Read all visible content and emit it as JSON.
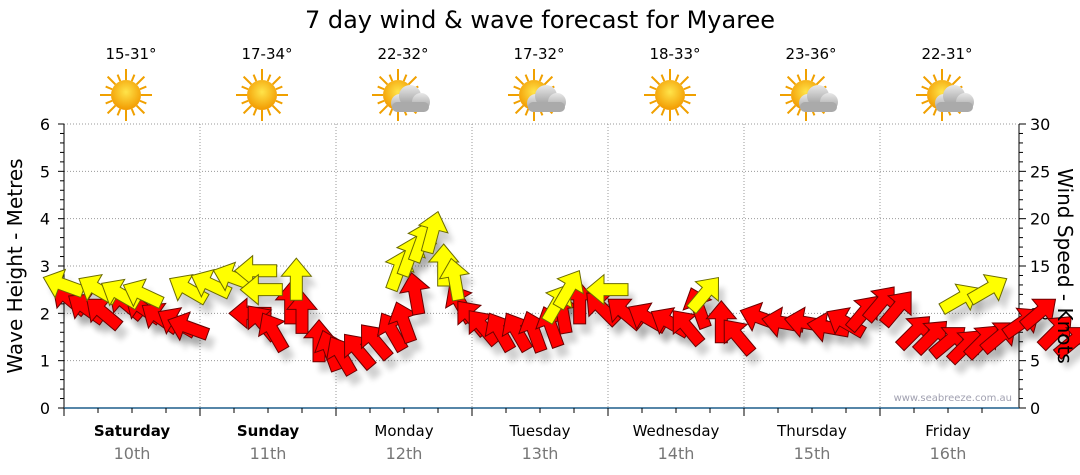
{
  "chart_data": {
    "type": "scatter",
    "title": "7 day wind & wave forecast for Myaree",
    "ylabel_left": "Wave Height - Metres",
    "ylabel_right": "Wind Speed - Knots",
    "ylim_left": [
      0,
      6
    ],
    "ylim_right": [
      0,
      30
    ],
    "yticks_left": [
      "0",
      "1",
      "2",
      "3",
      "4",
      "5",
      "6"
    ],
    "yticks_right": [
      "0",
      "5",
      "10",
      "15",
      "20",
      "25",
      "30"
    ],
    "grid": true,
    "watermark": "www.seabreeze.com.au",
    "days": [
      {
        "name": "Saturday",
        "date": "10th",
        "temp": "15-31°",
        "weather": "sunny",
        "bold": true
      },
      {
        "name": "Sunday",
        "date": "11th",
        "temp": "17-34°",
        "weather": "sunny",
        "bold": true
      },
      {
        "name": "Monday",
        "date": "12th",
        "temp": "22-32°",
        "weather": "partly-cloudy",
        "bold": false
      },
      {
        "name": "Tuesday",
        "date": "13th",
        "temp": "17-32°",
        "weather": "partly-cloudy",
        "bold": false
      },
      {
        "name": "Wednesday",
        "date": "14th",
        "temp": "18-33°",
        "weather": "sunny",
        "bold": false
      },
      {
        "name": "Thursday",
        "date": "15th",
        "temp": "23-36°",
        "weather": "partly-cloudy",
        "bold": false
      },
      {
        "name": "Friday",
        "date": "16th",
        "temp": "22-31°",
        "weather": "partly-cloudy",
        "bold": false
      }
    ],
    "series": [
      {
        "name": "Wave height (m)",
        "color": "#ffff00",
        "stroke": "#6b6b00",
        "axis": "left",
        "points": [
          [
            0,
            2.6,
            -70
          ],
          [
            6,
            2.5,
            -60
          ],
          [
            10,
            2.4,
            -60
          ],
          [
            14,
            2.4,
            -65
          ],
          [
            22,
            2.5,
            -60
          ],
          [
            26,
            2.6,
            -65
          ],
          [
            30,
            2.75,
            -70
          ],
          [
            34,
            2.9,
            -90
          ],
          [
            35,
            2.5,
            -90
          ],
          [
            41,
            2.7,
            0
          ],
          [
            59,
            2.9,
            20
          ],
          [
            61,
            3.2,
            20
          ],
          [
            63,
            3.5,
            20
          ],
          [
            65,
            3.7,
            15
          ],
          [
            67,
            3.0,
            0
          ],
          [
            69,
            2.7,
            -10
          ],
          [
            87,
            2.2,
            30
          ],
          [
            89,
            2.5,
            30
          ],
          [
            96,
            2.5,
            -90
          ],
          [
            113,
            2.4,
            40
          ],
          [
            158,
            2.3,
            60
          ],
          [
            163,
            2.5,
            60
          ]
        ]
      },
      {
        "name": "Wind speed (knots)",
        "color": "#ff0000",
        "stroke": "#6b0000",
        "axis": "right",
        "points": [
          [
            1,
            11.5,
            -50
          ],
          [
            4,
            10.5,
            -55
          ],
          [
            7,
            10,
            -50
          ],
          [
            11,
            11,
            -50
          ],
          [
            14,
            10.5,
            -55
          ],
          [
            17,
            9.5,
            -55
          ],
          [
            20,
            9,
            -60
          ],
          [
            22,
            8.5,
            -70
          ],
          [
            33,
            10,
            -90
          ],
          [
            35,
            9,
            -40
          ],
          [
            37,
            8,
            -30
          ],
          [
            40,
            11,
            0
          ],
          [
            42,
            10,
            0
          ],
          [
            45,
            7,
            0
          ],
          [
            47,
            6,
            -20
          ],
          [
            49,
            5.5,
            -30
          ],
          [
            52,
            6,
            -40
          ],
          [
            55,
            7,
            -40
          ],
          [
            58,
            8,
            -30
          ],
          [
            60,
            9,
            -20
          ],
          [
            62,
            12,
            -10
          ],
          [
            70,
            11,
            -30
          ],
          [
            72,
            9.5,
            -40
          ],
          [
            74,
            8.5,
            -40
          ],
          [
            77,
            8,
            -30
          ],
          [
            80,
            8,
            -30
          ],
          [
            83,
            8,
            -20
          ],
          [
            86,
            8.5,
            -20
          ],
          [
            88,
            10,
            -10
          ],
          [
            91,
            11,
            0
          ],
          [
            95,
            10.5,
            -45
          ],
          [
            99,
            10,
            -50
          ],
          [
            103,
            9.5,
            -60
          ],
          [
            107,
            9,
            -60
          ],
          [
            110,
            8.5,
            -40
          ],
          [
            112,
            10.5,
            -20
          ],
          [
            116,
            9,
            0
          ],
          [
            119,
            7.5,
            -40
          ],
          [
            123,
            9.5,
            -70
          ],
          [
            127,
            9,
            -80
          ],
          [
            131,
            9,
            -80
          ],
          [
            135,
            8.5,
            -80
          ],
          [
            138,
            9,
            -60
          ],
          [
            141,
            10,
            40
          ],
          [
            144,
            11,
            40
          ],
          [
            147,
            10.5,
            40
          ],
          [
            150,
            8,
            45
          ],
          [
            153,
            7.5,
            45
          ],
          [
            156,
            7,
            50
          ],
          [
            159,
            6.5,
            45
          ],
          [
            162,
            7,
            45
          ],
          [
            165,
            7.5,
            50
          ],
          [
            169,
            9,
            55
          ],
          [
            172,
            10,
            50
          ],
          [
            175,
            8,
            45
          ],
          [
            178,
            7,
            50
          ]
        ]
      }
    ]
  }
}
